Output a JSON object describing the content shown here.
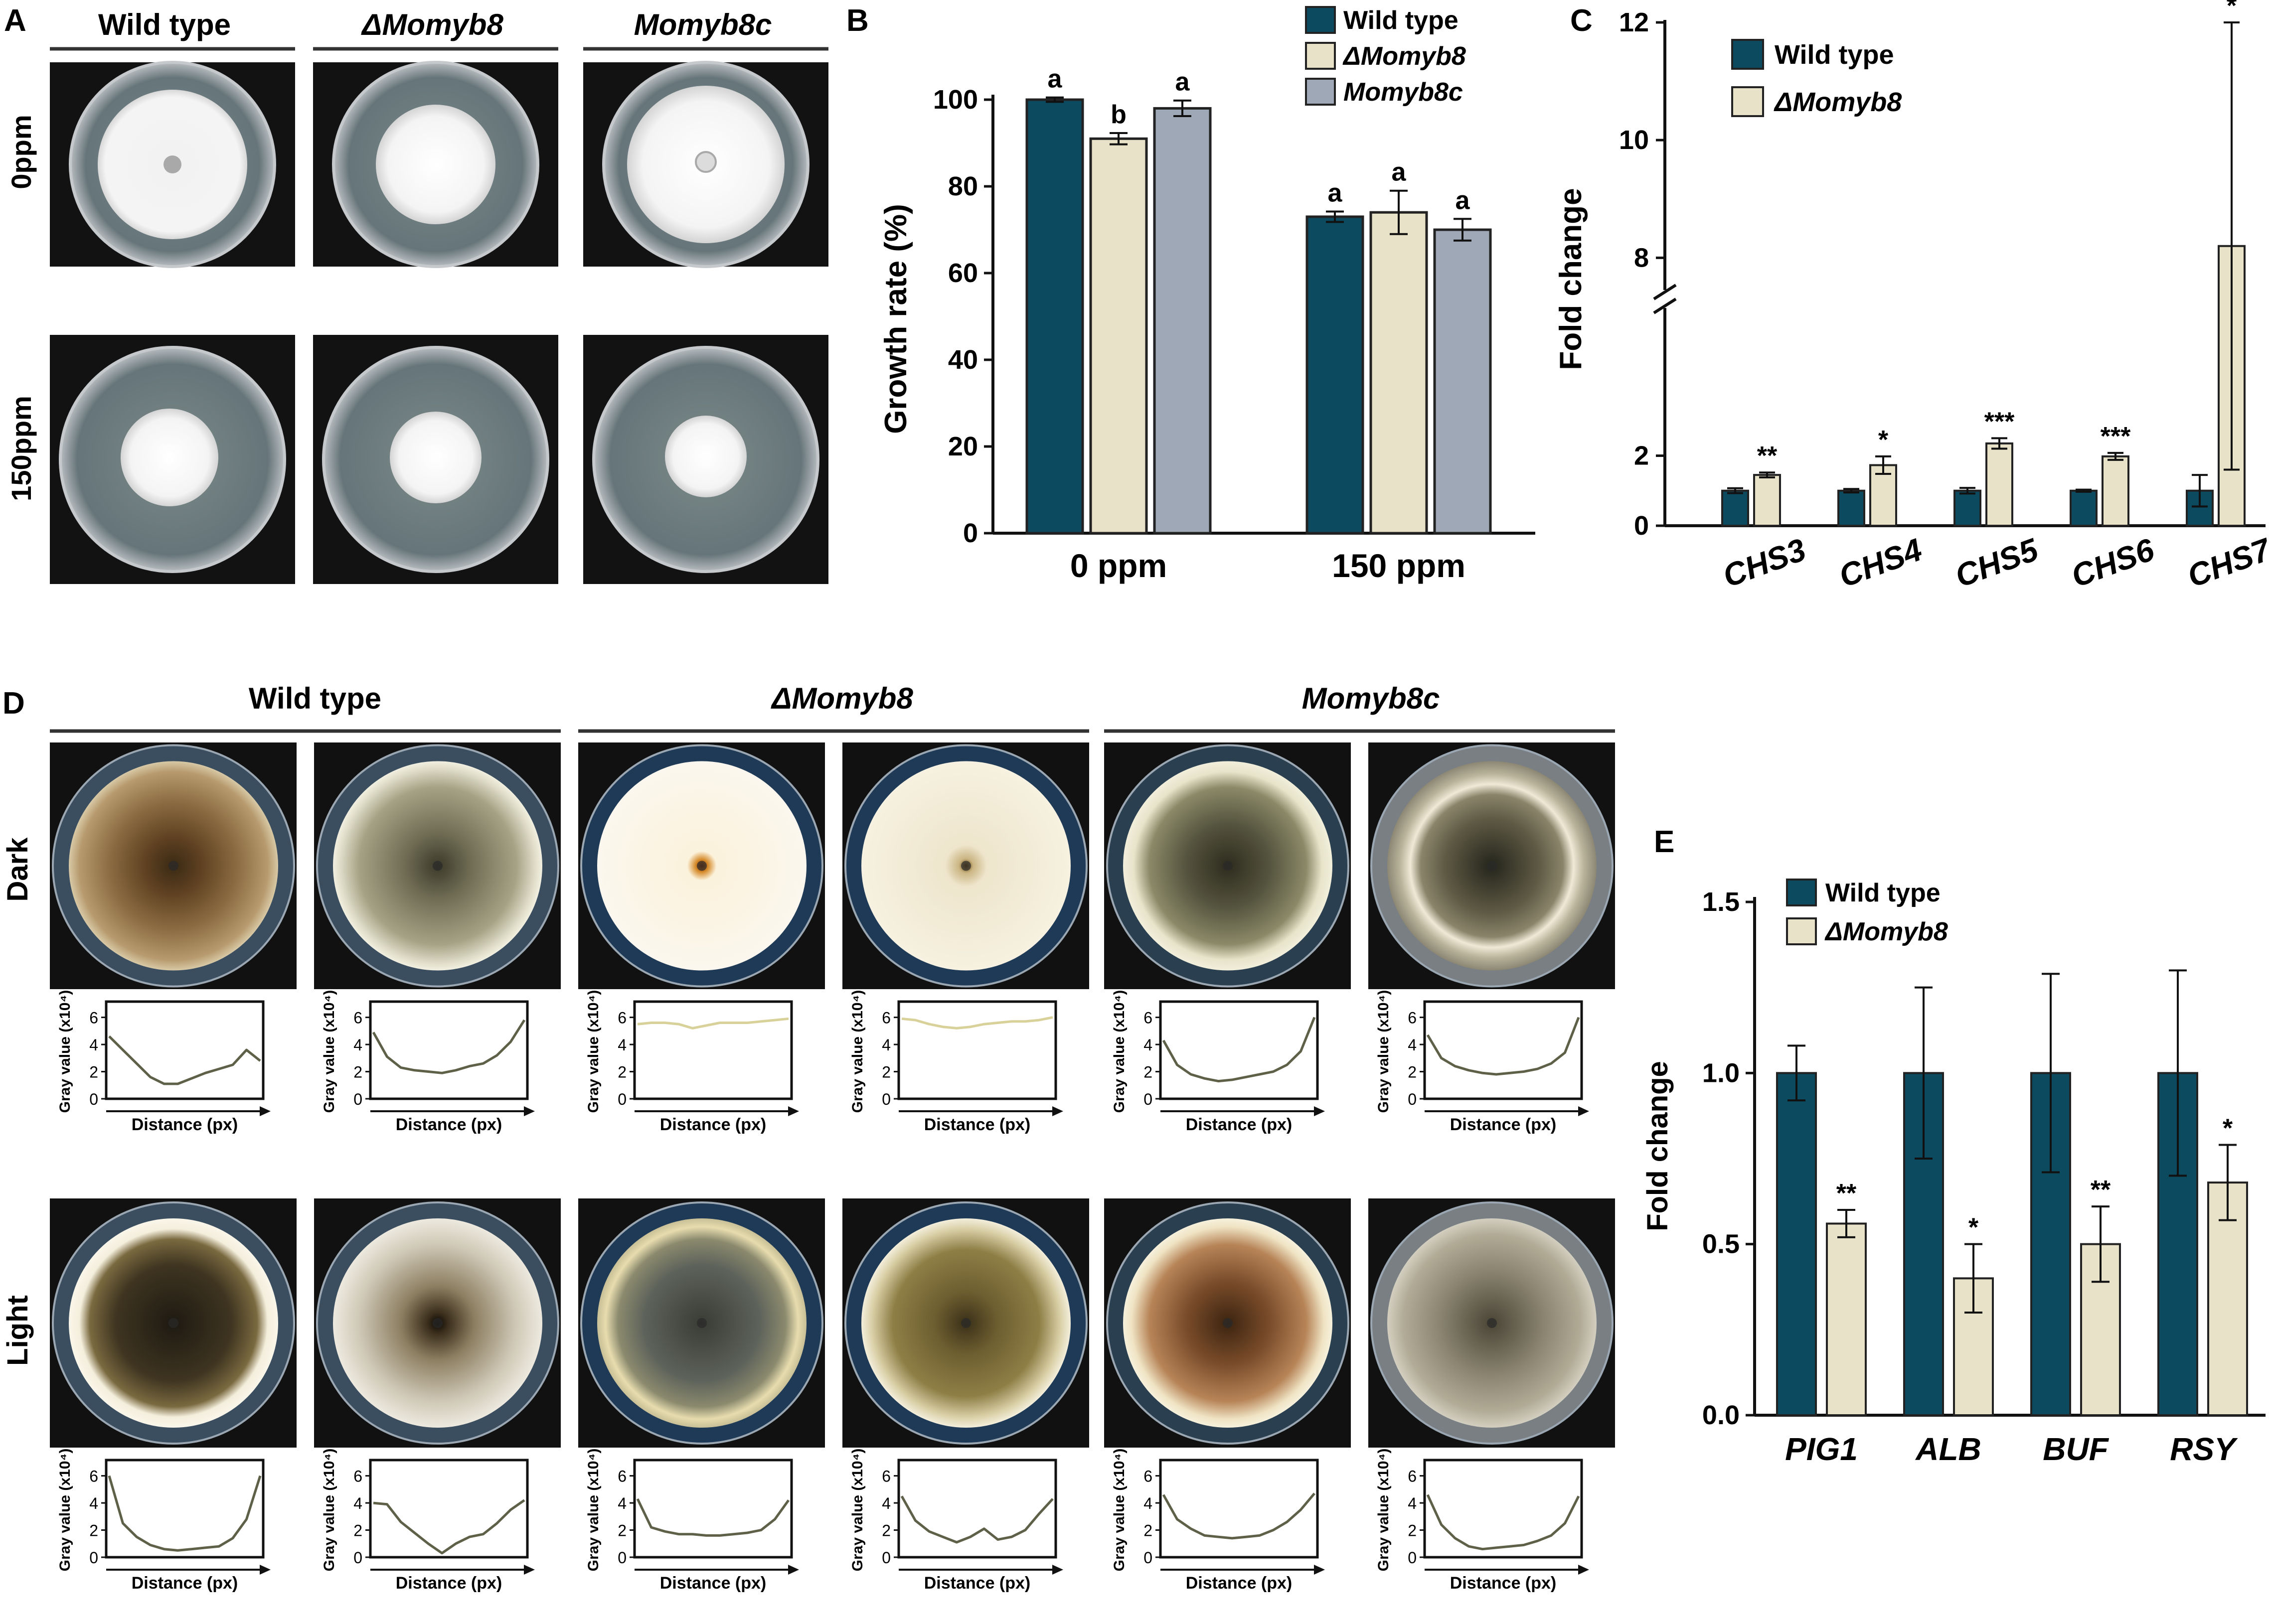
{
  "colors": {
    "wt": "#0c4a60",
    "mut": "#e8e2c8",
    "comp": "#9ea8b6",
    "bar_stroke": "#222222",
    "plate_bg": "#111111"
  },
  "panel_labels": {
    "a": "A",
    "b": "B",
    "c": "C",
    "d": "D",
    "e": "E"
  },
  "panel_a": {
    "columns": [
      "Wild type",
      "ΔMomyb8",
      "Momyb8c"
    ],
    "rows": [
      "0ppm",
      "150ppm"
    ]
  },
  "panel_d": {
    "columns": [
      "Wild type",
      "ΔMomyb8",
      "Momyb8c"
    ],
    "rows": [
      "Dark",
      "Light"
    ],
    "profile_ylabel": "Gray value (x10⁴)",
    "profile_xlabel": "Distance (px)",
    "profile_ticks": [
      "0",
      "2",
      "4",
      "6"
    ],
    "profiles": [
      [
        4.6,
        3.6,
        2.6,
        1.6,
        1.1,
        1.1,
        1.5,
        1.9,
        2.2,
        2.5,
        3.6,
        2.8
      ],
      [
        4.9,
        3.1,
        2.3,
        2.1,
        2.0,
        1.9,
        2.1,
        2.4,
        2.6,
        3.2,
        4.2,
        5.8
      ],
      [
        5.5,
        5.6,
        5.6,
        5.5,
        5.2,
        5.4,
        5.6,
        5.6,
        5.6,
        5.7,
        5.8,
        5.9
      ],
      [
        5.9,
        5.8,
        5.5,
        5.3,
        5.2,
        5.3,
        5.5,
        5.6,
        5.7,
        5.7,
        5.8,
        6.0
      ],
      [
        4.3,
        2.5,
        1.8,
        1.5,
        1.3,
        1.4,
        1.6,
        1.8,
        2.0,
        2.5,
        3.5,
        6.0
      ],
      [
        4.7,
        3.0,
        2.4,
        2.1,
        1.9,
        1.8,
        1.9,
        2.0,
        2.2,
        2.6,
        3.4,
        6.0
      ],
      [
        6.0,
        2.5,
        1.5,
        0.9,
        0.6,
        0.5,
        0.6,
        0.7,
        0.8,
        1.4,
        2.8,
        6.0
      ],
      [
        4.0,
        3.9,
        2.6,
        1.8,
        1.0,
        0.3,
        1.0,
        1.5,
        1.7,
        2.5,
        3.5,
        4.2
      ],
      [
        4.3,
        2.2,
        1.9,
        1.7,
        1.7,
        1.6,
        1.6,
        1.7,
        1.8,
        2.0,
        2.8,
        4.2
      ],
      [
        4.5,
        2.7,
        1.9,
        1.5,
        1.1,
        1.5,
        2.1,
        1.3,
        1.5,
        2.0,
        3.2,
        4.3
      ],
      [
        4.6,
        2.8,
        2.1,
        1.6,
        1.5,
        1.4,
        1.5,
        1.6,
        2.0,
        2.6,
        3.5,
        4.7
      ],
      [
        4.6,
        2.4,
        1.4,
        0.8,
        0.6,
        0.7,
        0.8,
        0.9,
        1.2,
        1.6,
        2.5,
        4.5
      ]
    ]
  },
  "chart_data": [
    {
      "type": "bar",
      "ylabel": "Growth rate (%)",
      "categories": [
        "0 ppm",
        "150 ppm"
      ],
      "series": [
        {
          "name": "Wild type",
          "values": [
            100,
            73
          ],
          "errors": [
            0.5,
            1.2
          ],
          "letters": [
            "a",
            "a"
          ]
        },
        {
          "name": "ΔMomyb8",
          "values": [
            91,
            74
          ],
          "errors": [
            1.3,
            5.0
          ],
          "letters": [
            "b",
            "a"
          ]
        },
        {
          "name": "Momyb8c",
          "values": [
            98,
            70
          ],
          "errors": [
            1.8,
            2.5
          ],
          "letters": [
            "a",
            "a"
          ]
        }
      ],
      "ylim": [
        0,
        100
      ],
      "yticks": [
        "0",
        "20",
        "40",
        "60",
        "80",
        "100"
      ],
      "legend": "top"
    },
    {
      "type": "bar",
      "ylabel": "Fold change",
      "categories": [
        "CHS3",
        "CHS4",
        "CHS5",
        "CHS6",
        "CHS7"
      ],
      "series": [
        {
          "name": "Wild type",
          "values": [
            1.0,
            1.0,
            1.0,
            1.0,
            1.0
          ],
          "errors": [
            0.07,
            0.05,
            0.08,
            0.03,
            0.45
          ]
        },
        {
          "name": "ΔMomyb8",
          "values": [
            1.45,
            1.73,
            2.35,
            1.98,
            8.2
          ],
          "errors": [
            0.07,
            0.25,
            0.15,
            0.1,
            3.8
          ]
        }
      ],
      "significance": [
        "**",
        "*",
        "***",
        "***",
        "*"
      ],
      "yticks": [
        "0",
        "2",
        "8",
        "10",
        "12"
      ],
      "axis_break": [
        3.7,
        7.3
      ],
      "legend": "top-left"
    },
    {
      "type": "bar",
      "ylabel": "Fold change",
      "categories": [
        "PIG1",
        "ALB",
        "BUF",
        "RSY"
      ],
      "series": [
        {
          "name": "Wild type",
          "values": [
            1.0,
            1.0,
            1.0,
            1.0
          ],
          "errors": [
            0.08,
            0.25,
            0.29,
            0.3
          ]
        },
        {
          "name": "ΔMomyb8",
          "values": [
            0.56,
            0.4,
            0.5,
            0.68
          ],
          "errors": [
            0.04,
            0.1,
            0.11,
            0.11
          ]
        }
      ],
      "significance": [
        "**",
        "*",
        "**",
        "*"
      ],
      "ylim": [
        0,
        1.5
      ],
      "yticks": [
        "0.0",
        "0.5",
        "1.0",
        "1.5"
      ],
      "legend": "top-left"
    }
  ]
}
